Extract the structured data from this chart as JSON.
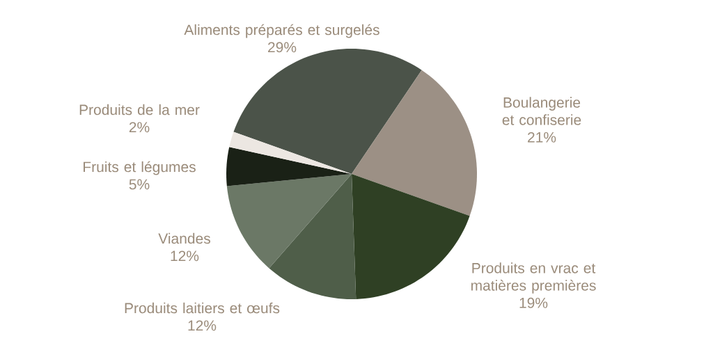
{
  "chart_data": {
    "type": "pie",
    "categories": [
      "Aliments préparés et surgelés",
      "Boulangerie et confiserie",
      "Produits en vrac et matières premières",
      "Produits laitiers et œufs",
      "Viandes",
      "Fruits et légumes",
      "Produits de la mer"
    ],
    "values": [
      29,
      21,
      19,
      12,
      12,
      5,
      2
    ],
    "value_labels": [
      "29%",
      "21%",
      "19%",
      "12%",
      "12%",
      "5%",
      "2%"
    ],
    "colors": [
      "#4b5349",
      "#9c9085",
      "#2f4024",
      "#4f5e49",
      "#6b7866",
      "#1a2116",
      "#ece7e2"
    ]
  }
}
